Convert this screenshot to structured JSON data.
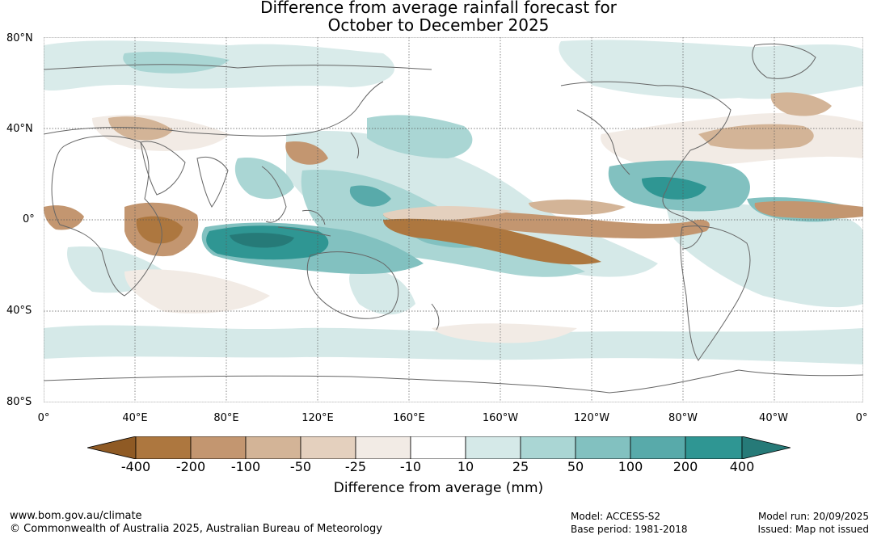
{
  "title": {
    "line1": "Difference from average rainfall forecast for",
    "line2": "October to December 2025"
  },
  "lat_labels": [
    "80°N",
    "40°N",
    "0°",
    "40°S",
    "80°S"
  ],
  "lon_labels": [
    "0°",
    "40°E",
    "80°E",
    "120°E",
    "160°E",
    "160°W",
    "120°W",
    "80°W",
    "40°W",
    "0°"
  ],
  "colorbar": {
    "title": "Difference from average (mm)",
    "tick_labels": [
      "-400",
      "-200",
      "-100",
      "-50",
      "-25",
      "-10",
      "10",
      "25",
      "50",
      "100",
      "200",
      "400"
    ],
    "colors": [
      "#8f5a24",
      "#ad773f",
      "#c39670",
      "#d3b497",
      "#e4d0be",
      "#f2ebe5",
      "#ffffff",
      "#d5e9e8",
      "#aad6d4",
      "#82c1c0",
      "#58aaaa",
      "#2f9693",
      "#267a78"
    ]
  },
  "footer": {
    "website": "www.bom.gov.au/climate",
    "copyright": "© Commonwealth of Australia 2025, Australian Bureau of Meteorology",
    "model": "Model: ACCESS-S2",
    "base_period": "Base period: 1981-2018",
    "model_run": "Model run: 20/09/2025",
    "issued": "Issued: Map not issued"
  }
}
